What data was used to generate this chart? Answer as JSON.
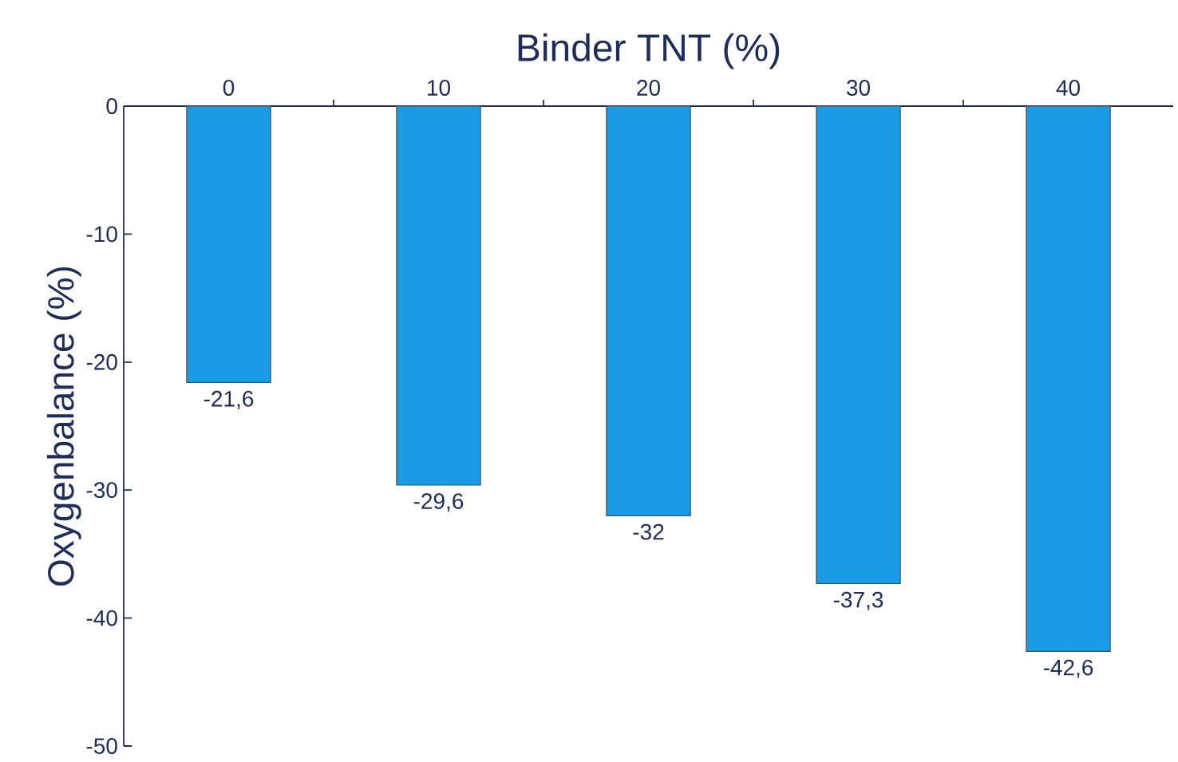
{
  "chart_data": {
    "type": "bar",
    "xlabel": "Binder TNT (%)",
    "ylabel": "Oxygenbalance (%)",
    "categories": [
      "0",
      "10",
      "20",
      "30",
      "40"
    ],
    "values": [
      -21.6,
      -29.6,
      -32,
      -37.3,
      -42.6
    ],
    "value_labels": [
      "-21,6",
      "-29,6",
      "-32",
      "-37,3",
      "-42,6"
    ],
    "color": "#1a9be6",
    "ylim": [
      -50,
      0
    ],
    "yticks": [
      0,
      -10,
      -20,
      -30,
      -40,
      -50
    ],
    "grid": false
  }
}
